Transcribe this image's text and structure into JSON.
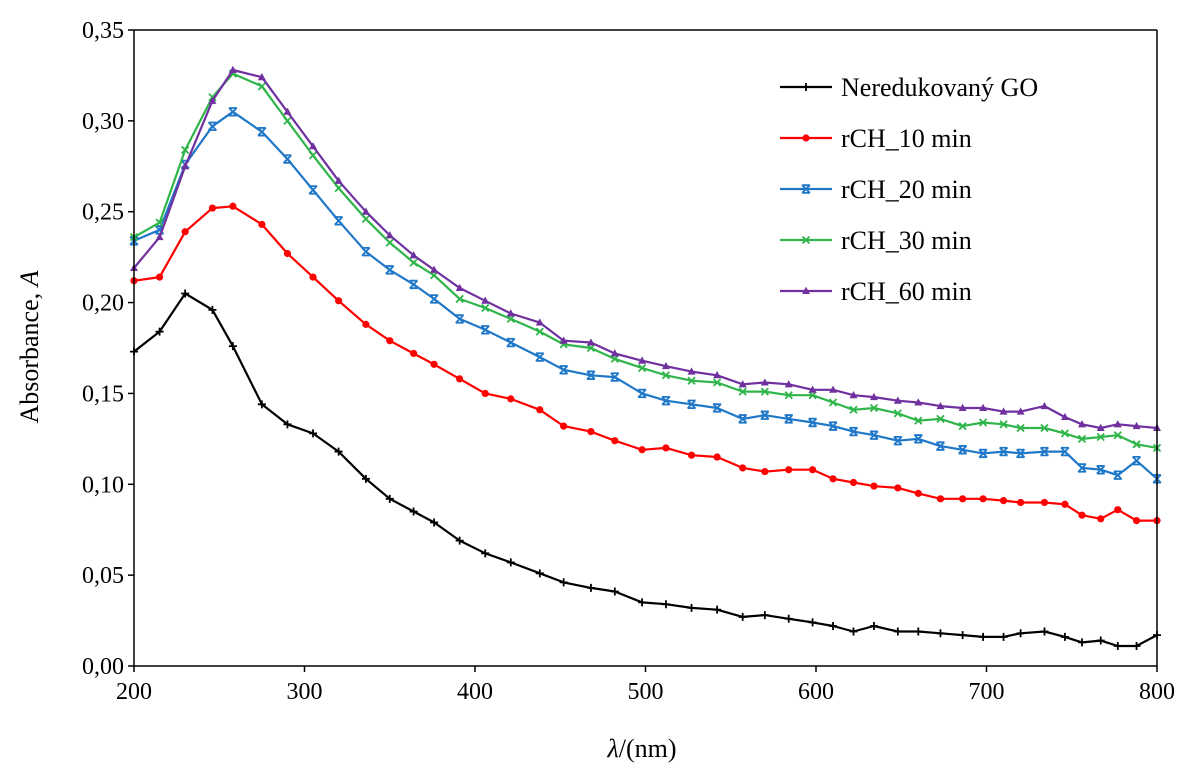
{
  "chart_data": {
    "type": "line",
    "xlabel_symbol": "λ",
    "xlabel_unit": "/(nm)",
    "ylabel_text": "Absorbance, ",
    "ylabel_symbol": "A",
    "xlim": [
      200,
      800
    ],
    "ylim": [
      0,
      0.35
    ],
    "x_ticks": [
      200,
      300,
      400,
      500,
      600,
      700,
      800
    ],
    "x_tick_labels": [
      "200",
      "300",
      "400",
      "500",
      "600",
      "700",
      "800"
    ],
    "y_ticks": [
      0,
      0.05,
      0.1,
      0.15,
      0.2,
      0.25,
      0.3,
      0.35
    ],
    "y_tick_labels": [
      "0,00",
      "0,05",
      "0,10",
      "0,15",
      "0,20",
      "0,25",
      "0,30",
      "0,35"
    ],
    "grid": false,
    "legend_position": "top-right",
    "x": [
      200,
      215,
      230,
      246,
      258,
      275,
      290,
      305,
      320,
      336,
      350,
      364,
      376,
      391,
      406,
      421,
      438,
      452,
      468,
      482,
      498,
      512,
      527,
      542,
      557,
      570,
      584,
      598,
      610,
      622,
      634,
      648,
      660,
      673,
      686,
      698,
      710,
      720,
      734,
      746,
      756,
      767,
      777,
      788,
      800
    ],
    "series": [
      {
        "name": "Neredukovaný GO",
        "color": "#000000",
        "marker": "plus",
        "values": [
          0.173,
          0.184,
          0.205,
          0.196,
          0.176,
          0.144,
          0.133,
          0.128,
          0.118,
          0.103,
          0.092,
          0.085,
          0.079,
          0.069,
          0.062,
          0.057,
          0.051,
          0.046,
          0.043,
          0.041,
          0.035,
          0.034,
          0.032,
          0.031,
          0.027,
          0.028,
          0.026,
          0.024,
          0.022,
          0.019,
          0.022,
          0.019,
          0.019,
          0.018,
          0.017,
          0.016,
          0.016,
          0.018,
          0.019,
          0.016,
          0.013,
          0.014,
          0.011,
          0.011,
          0.017
        ]
      },
      {
        "name": "rCH_10 min",
        "color": "#ff0000",
        "marker": "circle",
        "values": [
          0.212,
          0.214,
          0.239,
          0.252,
          0.253,
          0.243,
          0.227,
          0.214,
          0.201,
          0.188,
          0.179,
          0.172,
          0.166,
          0.158,
          0.15,
          0.147,
          0.141,
          0.132,
          0.129,
          0.124,
          0.119,
          0.12,
          0.116,
          0.115,
          0.109,
          0.107,
          0.108,
          0.108,
          0.103,
          0.101,
          0.099,
          0.098,
          0.095,
          0.092,
          0.092,
          0.092,
          0.091,
          0.09,
          0.09,
          0.089,
          0.083,
          0.081,
          0.086,
          0.08,
          0.08
        ]
      },
      {
        "name": "rCH_20 min",
        "color": "#1f77c8",
        "marker": "star",
        "values": [
          0.234,
          0.24,
          0.276,
          0.297,
          0.305,
          0.294,
          0.279,
          0.262,
          0.245,
          0.228,
          0.218,
          0.21,
          0.202,
          0.191,
          0.185,
          0.178,
          0.17,
          0.163,
          0.16,
          0.159,
          0.15,
          0.146,
          0.144,
          0.142,
          0.136,
          0.138,
          0.136,
          0.134,
          0.132,
          0.129,
          0.127,
          0.124,
          0.125,
          0.121,
          0.119,
          0.117,
          0.118,
          0.117,
          0.118,
          0.118,
          0.109,
          0.108,
          0.105,
          0.113,
          0.103
        ]
      },
      {
        "name": "rCH_30 min",
        "color": "#2fb54a",
        "marker": "x",
        "values": [
          0.236,
          0.244,
          0.284,
          0.313,
          0.326,
          0.319,
          0.3,
          0.281,
          0.263,
          0.246,
          0.233,
          0.222,
          0.215,
          0.202,
          0.197,
          0.191,
          0.184,
          0.177,
          0.175,
          0.169,
          0.164,
          0.16,
          0.157,
          0.156,
          0.151,
          0.151,
          0.149,
          0.149,
          0.145,
          0.141,
          0.142,
          0.139,
          0.135,
          0.136,
          0.132,
          0.134,
          0.133,
          0.131,
          0.131,
          0.128,
          0.125,
          0.126,
          0.127,
          0.122,
          0.12
        ]
      },
      {
        "name": "rCH_60 min",
        "color": "#7030a0",
        "marker": "triangle",
        "values": [
          0.219,
          0.236,
          0.275,
          0.311,
          0.328,
          0.324,
          0.305,
          0.286,
          0.267,
          0.25,
          0.237,
          0.226,
          0.218,
          0.208,
          0.201,
          0.194,
          0.189,
          0.179,
          0.178,
          0.172,
          0.168,
          0.165,
          0.162,
          0.16,
          0.155,
          0.156,
          0.155,
          0.152,
          0.152,
          0.149,
          0.148,
          0.146,
          0.145,
          0.143,
          0.142,
          0.142,
          0.14,
          0.14,
          0.143,
          0.137,
          0.133,
          0.131,
          0.133,
          0.132,
          0.131
        ]
      }
    ]
  }
}
